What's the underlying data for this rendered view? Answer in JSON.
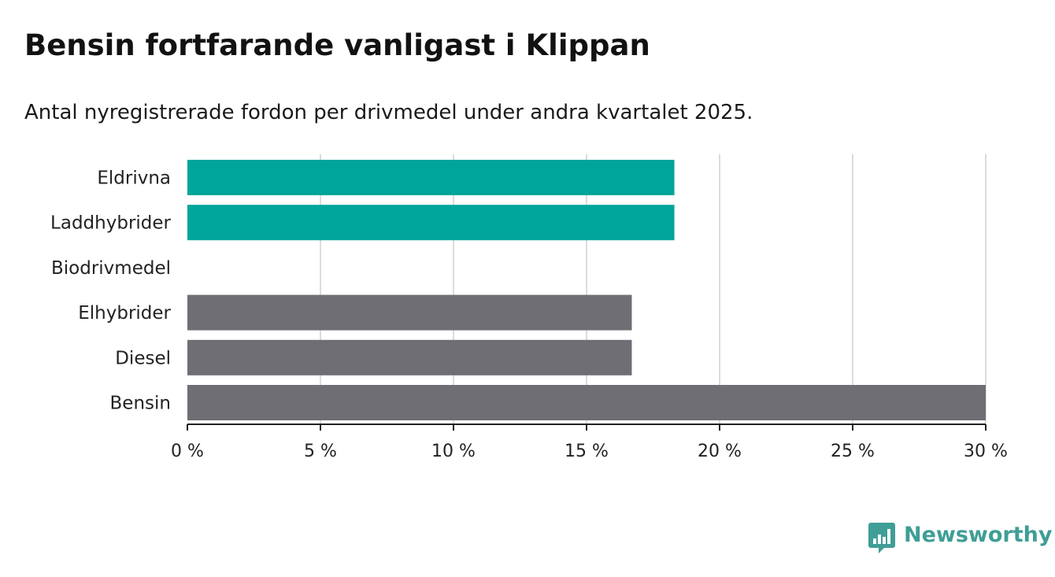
{
  "title": "Bensin fortfarande vanligast i Klippan",
  "subtitle": "Antal nyregistrerade fordon per drivmedel under andra kvartalet 2025.",
  "brand": {
    "name": "Newsworthy",
    "icon": "bar-chart-speech-bubble-icon",
    "color": "#3f9e96"
  },
  "colors": {
    "highlight": "#00a59a",
    "default": "#6e6e74",
    "grid": "#dcdcdc",
    "axis": "#222222"
  },
  "chart_data": {
    "type": "bar",
    "orientation": "horizontal",
    "categories": [
      "Eldrivna",
      "Laddhybrider",
      "Biodrivmedel",
      "Elhybrider",
      "Diesel",
      "Bensin"
    ],
    "values": [
      18.3,
      18.3,
      0,
      16.7,
      16.7,
      30.0
    ],
    "highlighted": [
      true,
      true,
      false,
      false,
      false,
      false
    ],
    "x_ticks": [
      0,
      5,
      10,
      15,
      20,
      25,
      30
    ],
    "x_tick_labels": [
      "0 %",
      "5 %",
      "10 %",
      "15 %",
      "20 %",
      "25 %",
      "30 %"
    ],
    "xlim": [
      0,
      30
    ],
    "xlabel": "",
    "ylabel": "",
    "grid": true,
    "legend": false
  }
}
